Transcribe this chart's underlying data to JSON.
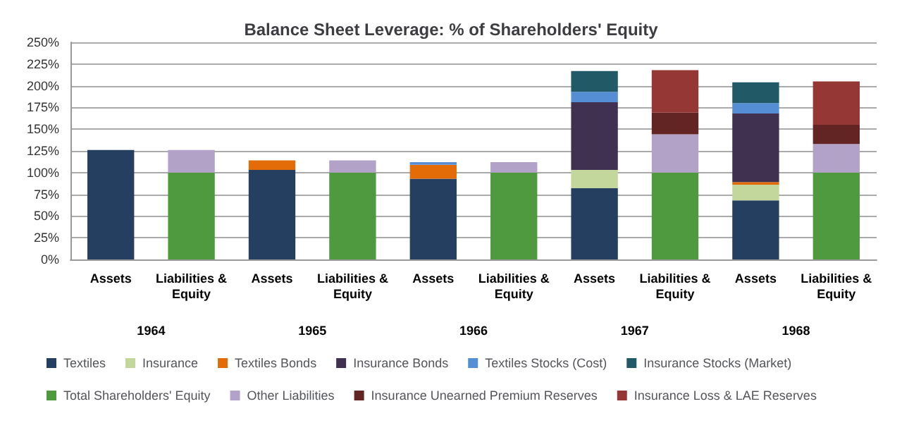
{
  "chart_data": {
    "type": "bar",
    "title": "Balance Sheet Leverage: % of Shareholders' Equity",
    "stacked": true,
    "categories": [
      "Assets",
      "Liabilities & Equity",
      "Assets",
      "Liabilities & Equity",
      "Assets",
      "Liabilities & Equity",
      "Assets",
      "Liabilities & Equity",
      "Assets",
      "Liabilities & Equity"
    ],
    "annotations": [
      "1964",
      "1965",
      "1966",
      "1967",
      "1968"
    ],
    "series": [
      {
        "name": "Textiles",
        "color": "#243f60",
        "values": [
          126,
          null,
          103,
          null,
          93,
          null,
          82,
          null,
          68,
          null
        ]
      },
      {
        "name": "Insurance",
        "color": "#c3d69b",
        "values": [
          null,
          null,
          null,
          null,
          null,
          null,
          21,
          null,
          18,
          null
        ]
      },
      {
        "name": "Textiles Bonds",
        "color": "#e36c09",
        "values": [
          null,
          null,
          11,
          null,
          16,
          null,
          null,
          null,
          3,
          null
        ]
      },
      {
        "name": "Insurance Bonds",
        "color": "#403151",
        "values": [
          null,
          null,
          null,
          null,
          null,
          null,
          78,
          null,
          79,
          null
        ]
      },
      {
        "name": "Textiles Stocks (Cost)",
        "color": "#558ed5",
        "values": [
          null,
          null,
          null,
          null,
          3,
          null,
          12,
          null,
          12,
          null
        ]
      },
      {
        "name": "Insurance Stocks (Market)",
        "color": "#215967",
        "values": [
          null,
          null,
          null,
          null,
          null,
          null,
          24,
          null,
          24,
          null
        ]
      },
      {
        "name": "Total Shareholders' Equity",
        "color": "#4f9a3e",
        "values": [
          null,
          100,
          null,
          100,
          null,
          100,
          null,
          100,
          null,
          100
        ]
      },
      {
        "name": "Other Liabilities",
        "color": "#b3a2c7",
        "values": [
          null,
          26,
          null,
          14,
          null,
          12,
          null,
          44,
          null,
          33
        ]
      },
      {
        "name": "Insurance Unearned Premium Reserves",
        "color": "#632523",
        "values": [
          null,
          null,
          null,
          null,
          null,
          null,
          null,
          25,
          null,
          22
        ]
      },
      {
        "name": "Insurance Loss & LAE Reserves",
        "color": "#953735",
        "values": [
          null,
          null,
          null,
          null,
          null,
          null,
          null,
          49,
          null,
          50
        ]
      }
    ],
    "ylim": [
      0,
      250
    ],
    "yticks": [
      {
        "value": 0,
        "label": "0%"
      },
      {
        "value": 25,
        "label": "25%"
      },
      {
        "value": 50,
        "label": "50%"
      },
      {
        "value": 75,
        "label": "75%"
      },
      {
        "value": 100,
        "label": "100%"
      },
      {
        "value": 125,
        "label": "125%"
      },
      {
        "value": 150,
        "label": "150%"
      },
      {
        "value": 175,
        "label": "175%"
      },
      {
        "value": 200,
        "label": "200%"
      },
      {
        "value": 225,
        "label": "225%"
      },
      {
        "value": 250,
        "label": "250%"
      }
    ],
    "grid": "y",
    "legend": "bottom"
  }
}
